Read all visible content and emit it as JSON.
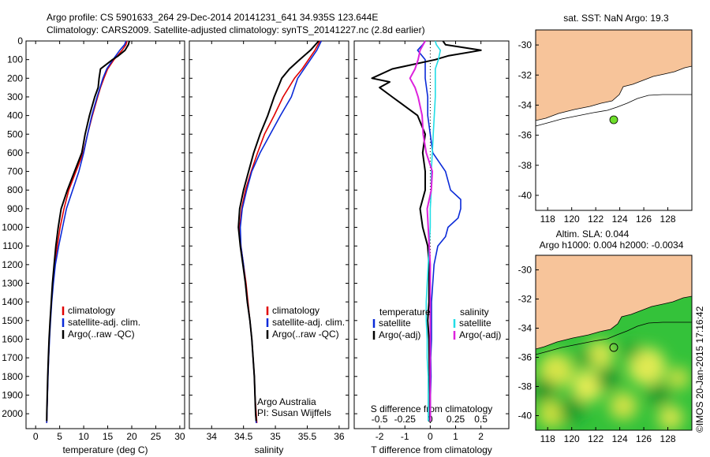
{
  "header": {
    "line1": "Argo profile: CS 5901633_264 29-Dec-2014 20141231_641 34.935S 123.644E",
    "line2": "Climatology: CARS2009. Satellite-adjusted climatology: synTS_20141227.nc (2.8d earlier)"
  },
  "credit": "©IMOS 20-Jan-2015 17:16:42",
  "colors": {
    "climatology": "#e00000",
    "satellite": "#0a2ad8",
    "argo": "#000000",
    "sal_satellite": "#22dde6",
    "sal_argo": "#dd22dd",
    "land": "#f7c49a",
    "ocean_map": "#2fbf2f"
  },
  "chart_data": [
    {
      "id": "temperature",
      "type": "line",
      "xlabel": "temperature (deg C)",
      "ylabel": "",
      "xlim": [
        -2,
        31
      ],
      "ylim": [
        2080,
        0
      ],
      "x_ticks": [
        0,
        5,
        10,
        15,
        20,
        25,
        30
      ],
      "y_ticks": [
        0,
        100,
        200,
        300,
        400,
        500,
        600,
        700,
        800,
        900,
        1000,
        1100,
        1200,
        1300,
        1400,
        1500,
        1600,
        1700,
        1800,
        1900,
        2000
      ],
      "legend": [
        "climatology",
        "satellite-adj. clim.",
        "Argo(..raw -QC)"
      ],
      "series": [
        {
          "name": "climatology",
          "depth": [
            0,
            20,
            50,
            100,
            150,
            200,
            250,
            300,
            400,
            500,
            600,
            700,
            800,
            900,
            1000,
            1100,
            1200,
            1300,
            1400,
            1500,
            1600,
            1700,
            1800,
            1900,
            2000,
            2050
          ],
          "values": [
            19.0,
            18.8,
            18.0,
            16.3,
            15.0,
            14.2,
            13.5,
            12.9,
            11.8,
            10.8,
            9.9,
            8.4,
            6.9,
            5.9,
            5.1,
            4.5,
            3.95,
            3.6,
            3.3,
            3.05,
            2.85,
            2.7,
            2.55,
            2.45,
            2.35,
            2.3
          ]
        },
        {
          "name": "satellite-adj. clim.",
          "depth": [
            0,
            20,
            50,
            100,
            150,
            200,
            250,
            300,
            400,
            500,
            600,
            700,
            800,
            900,
            1000,
            1100,
            1200,
            1300,
            1400,
            1500,
            1600,
            1700,
            1800,
            1900,
            2000,
            2050
          ],
          "values": [
            18.8,
            18.5,
            17.5,
            16.1,
            14.8,
            14.0,
            13.4,
            12.8,
            11.7,
            10.8,
            10.0,
            9.0,
            7.7,
            6.4,
            5.6,
            4.8,
            4.1,
            3.7,
            3.35,
            3.1,
            2.9,
            2.72,
            2.58,
            2.46,
            2.36,
            2.3
          ]
        },
        {
          "name": "Argo(..raw -QC)",
          "depth": [
            0,
            20,
            50,
            80,
            100,
            150,
            200,
            250,
            300,
            400,
            500,
            600,
            700,
            800,
            900,
            1000,
            1100,
            1200,
            1300,
            1400,
            1500,
            1600,
            1700,
            1800,
            1900,
            2000,
            2040
          ],
          "values": [
            19.5,
            19.3,
            18.6,
            17.2,
            16.0,
            13.5,
            13.2,
            13.0,
            12.3,
            11.2,
            10.3,
            9.6,
            8.1,
            6.6,
            5.3,
            4.7,
            4.2,
            3.85,
            3.5,
            3.25,
            3.0,
            2.8,
            2.65,
            2.52,
            2.42,
            2.32,
            2.3
          ]
        }
      ]
    },
    {
      "id": "salinity",
      "type": "line",
      "xlabel": "salinity",
      "ylabel": "",
      "xlim": [
        33.65,
        36.15
      ],
      "ylim": [
        2080,
        0
      ],
      "x_ticks": [
        34,
        34.5,
        35,
        35.5,
        36
      ],
      "legend": [
        "climatology",
        "satellite-adj. clim.",
        "Argo(..raw -QC)"
      ],
      "annotation": [
        "Argo Australia",
        "PI: Susan Wijffels"
      ],
      "series": [
        {
          "name": "climatology",
          "depth": [
            0,
            50,
            100,
            150,
            200,
            300,
            400,
            500,
            600,
            700,
            800,
            900,
            1000,
            1100,
            1200,
            1300,
            1400,
            1500,
            1600,
            1700,
            1800,
            1900,
            2000,
            2050
          ],
          "values": [
            35.7,
            35.62,
            35.52,
            35.42,
            35.3,
            35.12,
            34.98,
            34.83,
            34.72,
            34.62,
            34.53,
            34.47,
            34.44,
            34.46,
            34.5,
            34.54,
            34.57,
            34.6,
            34.63,
            34.65,
            34.67,
            34.68,
            34.7,
            34.71
          ]
        },
        {
          "name": "satellite-adj. clim.",
          "depth": [
            0,
            50,
            100,
            150,
            200,
            300,
            400,
            500,
            600,
            700,
            800,
            900,
            1000,
            1100,
            1200,
            1300,
            1400,
            1500,
            1600,
            1700,
            1800,
            1900,
            2000,
            2050
          ],
          "values": [
            35.72,
            35.65,
            35.55,
            35.45,
            35.35,
            35.25,
            35.08,
            34.92,
            34.76,
            34.63,
            34.55,
            34.48,
            34.45,
            34.46,
            34.5,
            34.53,
            34.56,
            34.6,
            34.63,
            34.65,
            34.67,
            34.68,
            34.69,
            34.7
          ]
        },
        {
          "name": "Argo(..raw -QC)",
          "depth": [
            0,
            50,
            100,
            150,
            200,
            300,
            400,
            500,
            600,
            700,
            800,
            900,
            1000,
            1100,
            1200,
            1300,
            1400,
            1500,
            1600,
            1700,
            1800,
            1900,
            2000,
            2040
          ],
          "values": [
            35.68,
            35.55,
            35.38,
            35.22,
            35.1,
            34.98,
            34.88,
            34.76,
            34.66,
            34.58,
            34.5,
            34.44,
            34.42,
            34.45,
            34.49,
            34.53,
            34.56,
            34.6,
            34.63,
            34.65,
            34.67,
            34.68,
            34.69,
            34.7
          ]
        }
      ]
    },
    {
      "id": "difference",
      "type": "line",
      "xlabel": "T difference from climatology",
      "x2label": "S difference from climatology",
      "ylabel": "",
      "xlim": [
        -3,
        3.1
      ],
      "ylim": [
        2080,
        0
      ],
      "x_ticks": [
        -2,
        -1,
        0,
        1,
        2
      ],
      "x2_ticks": [
        -0.5,
        -0.25,
        0,
        0.25,
        0.5
      ],
      "x2_tick_labels": [
        "-0.5",
        "-0.25",
        "0",
        "0.25",
        "0.5"
      ],
      "legend_headers": [
        "temperature",
        "salinity"
      ],
      "legend": [
        "satellite",
        "Argo(-adj)",
        "satellite",
        "Argo(-adj)"
      ],
      "series": [
        {
          "name": "satellite",
          "variable": "temperature",
          "depth": [
            0,
            20,
            50,
            100,
            150,
            200,
            300,
            400,
            500,
            600,
            700,
            800,
            850,
            900,
            950,
            1000,
            1050,
            1100,
            1200,
            1300,
            1400,
            1500,
            1600,
            1700,
            1800,
            1900,
            2000,
            2040
          ],
          "values": [
            -0.2,
            -0.3,
            -0.5,
            -0.2,
            -0.2,
            -0.2,
            -0.1,
            -0.1,
            0.0,
            0.1,
            0.6,
            0.8,
            1.2,
            1.2,
            1.1,
            0.7,
            0.6,
            0.3,
            0.15,
            0.1,
            0.05,
            0.05,
            0.05,
            0.02,
            0.03,
            0.01,
            0.01,
            0.0
          ]
        },
        {
          "name": "Argo(-adj)",
          "variable": "temperature",
          "depth": [
            0,
            20,
            50,
            80,
            100,
            150,
            200,
            220,
            250,
            300,
            350,
            400,
            500,
            600,
            700,
            800,
            900,
            1000,
            1100,
            1200,
            1300,
            1400,
            1500,
            1600,
            1700,
            1800,
            1900,
            2000,
            2040
          ],
          "values": [
            0.5,
            0.6,
            2.0,
            0.7,
            0.2,
            -1.5,
            -2.3,
            -1.6,
            -2.0,
            -1.5,
            -1.0,
            -0.5,
            -0.2,
            -0.3,
            -0.2,
            -0.2,
            -0.4,
            -0.3,
            -0.1,
            -0.05,
            -0.05,
            -0.05,
            -0.1,
            -0.05,
            -0.04,
            -0.03,
            -0.02,
            -0.02,
            -0.02
          ]
        },
        {
          "name": "satellite",
          "variable": "salinity",
          "depth": [
            0,
            20,
            50,
            100,
            150,
            200,
            300,
            400,
            500,
            600,
            700,
            800,
            900,
            1000,
            1100,
            1200,
            1300,
            1400,
            1500,
            1600,
            1700,
            1800,
            1900,
            2000,
            2040
          ],
          "values": [
            0.05,
            0.06,
            0.1,
            0.08,
            0.05,
            0.05,
            0.05,
            0.04,
            0.03,
            0.02,
            0.01,
            0.01,
            0.0,
            0.0,
            -0.01,
            -0.02,
            -0.03,
            -0.04,
            -0.04,
            -0.03,
            -0.03,
            -0.02,
            -0.02,
            -0.02,
            -0.02
          ]
        },
        {
          "name": "Argo(-adj)",
          "variable": "salinity",
          "depth": [
            0,
            50,
            100,
            150,
            200,
            250,
            300,
            400,
            500,
            600,
            700,
            800,
            900,
            1000,
            1100,
            1200,
            1300,
            1400,
            1500,
            1600,
            1700,
            1800,
            1900,
            2000,
            2040
          ],
          "values": [
            -0.05,
            -0.1,
            -0.12,
            -0.15,
            -0.2,
            -0.15,
            -0.12,
            -0.08,
            -0.07,
            -0.04,
            0.02,
            0.01,
            -0.03,
            -0.02,
            -0.01,
            0.0,
            0.0,
            0.0,
            0.0,
            0.0,
            0.0,
            0.0,
            0.0,
            0.0,
            0.0
          ]
        }
      ]
    },
    {
      "id": "sst_map",
      "type": "heatmap",
      "title": "sat. SST: NaN Argo: 19.3",
      "xlim": [
        117,
        130
      ],
      "ylim": [
        -41,
        -29
      ],
      "x_ticks": [
        118,
        120,
        122,
        124,
        126,
        128
      ],
      "y_ticks": [
        -30,
        -32,
        -34,
        -36,
        -38,
        -40
      ],
      "profile_location": {
        "lon": 123.644,
        "lat": -34.935
      }
    },
    {
      "id": "sla_map",
      "type": "heatmap",
      "title": "Altim. SLA: 0.044",
      "subtitle": "Argo h1000: 0.004 h2000: -0.0034",
      "xlim": [
        117,
        130
      ],
      "ylim": [
        -41,
        -29
      ],
      "x_ticks": [
        118,
        120,
        122,
        124,
        126,
        128
      ],
      "y_ticks": [
        -30,
        -32,
        -34,
        -36,
        -38,
        -40
      ],
      "profile_location": {
        "lon": 123.644,
        "lat": -34.935
      }
    }
  ]
}
